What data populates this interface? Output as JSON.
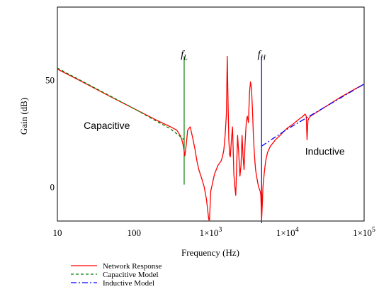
{
  "chart_data": {
    "type": "line",
    "xlabel": "Frequency (Hz)",
    "ylabel": "Gain (dB)",
    "x_scale": "log",
    "xlim": [
      10,
      100000
    ],
    "ylim": [
      -16,
      84
    ],
    "x_ticks": [
      {
        "value": 10,
        "label": "10"
      },
      {
        "value": 100,
        "label": "100"
      },
      {
        "value": 1000,
        "label": "1×10",
        "exp": "3"
      },
      {
        "value": 10000,
        "label": "1×10",
        "exp": "4"
      },
      {
        "value": 100000,
        "label": "1×10",
        "exp": "5"
      }
    ],
    "y_ticks": [
      {
        "value": 50,
        "label": "50"
      },
      {
        "value": 0,
        "label": "0"
      }
    ],
    "grid": false,
    "legend_position": "bottom-left",
    "annotations": [
      {
        "text": "Capacitive",
        "x": 22,
        "y": 27
      },
      {
        "text": "Inductive",
        "x": 17000,
        "y": 15
      },
      {
        "text": "f",
        "sub": "L",
        "x": 450,
        "y": 62
      },
      {
        "text": "f",
        "sub": "H",
        "x": 4600,
        "y": 62
      }
    ],
    "vlines": [
      {
        "name": "fL",
        "x": 450,
        "y_from": 1,
        "y_to": 61,
        "color": "#008000"
      },
      {
        "name": "fH",
        "x": 4600,
        "y_from": -17,
        "y_to": 61,
        "color": "#0000ff"
      }
    ],
    "series": [
      {
        "name": "Network Response",
        "color": "#ff0000",
        "dash": "",
        "x": [
          10,
          20,
          50,
          100,
          200,
          300,
          360,
          400,
          420,
          440,
          460,
          480,
          500,
          540,
          580,
          620,
          660,
          700,
          760,
          820,
          880,
          940,
          960,
          1000,
          1060,
          1120,
          1180,
          1240,
          1300,
          1360,
          1420,
          1480,
          1540,
          1600,
          1640,
          1680,
          1720,
          1760,
          1800,
          1860,
          1920,
          1960,
          2000,
          2060,
          2120,
          2180,
          2240,
          2320,
          2400,
          2480,
          2560,
          2640,
          2720,
          2800,
          2900,
          3000,
          3100,
          3200,
          3300,
          3400,
          3500,
          3600,
          3680,
          3760,
          3840,
          3920,
          4000,
          4100,
          4200,
          4300,
          4400,
          4500,
          4560,
          4600,
          4700,
          4800,
          5000,
          5200,
          5500,
          6000,
          7000,
          8000,
          9000,
          10000,
          12000,
          14000,
          16000,
          17000,
          17600,
          18000,
          18500,
          19000,
          20000,
          30000,
          50000,
          70000,
          100000
        ],
        "y": [
          55,
          49.5,
          42,
          36.5,
          31,
          28,
          26.5,
          24,
          22,
          19,
          14.5,
          20,
          26.5,
          28,
          23,
          18,
          12,
          8,
          4,
          0,
          -6,
          -15,
          -16,
          -2,
          2,
          6,
          8,
          10,
          11,
          12,
          14,
          17,
          24,
          34,
          61,
          40,
          22,
          15,
          14,
          22,
          28,
          18,
          6,
          0,
          -4,
          10,
          24,
          15,
          5,
          10,
          24,
          14,
          8,
          20,
          30,
          33,
          30,
          44,
          49,
          46,
          36,
          24,
          17,
          12,
          8,
          6,
          4,
          2,
          0,
          -1,
          -2,
          -4,
          -10,
          -16,
          -8,
          0,
          7,
          12,
          16,
          19,
          22,
          24,
          26,
          27.5,
          29.5,
          31.5,
          33,
          34,
          33,
          22,
          31,
          32,
          33,
          37,
          42,
          45,
          48
        ]
      },
      {
        "name": "Capacitive Model",
        "color": "#008000",
        "dash": "4,3",
        "x": [
          10,
          100,
          200,
          300,
          400,
          450
        ],
        "y": [
          55.5,
          36.5,
          30.5,
          27,
          23.5,
          22
        ]
      },
      {
        "name": "Inductive Model",
        "color": "#0000ff",
        "dash": "8,3,2,3",
        "x": [
          4600,
          10000,
          100000
        ],
        "y": [
          19,
          27,
          48
        ]
      }
    ]
  }
}
